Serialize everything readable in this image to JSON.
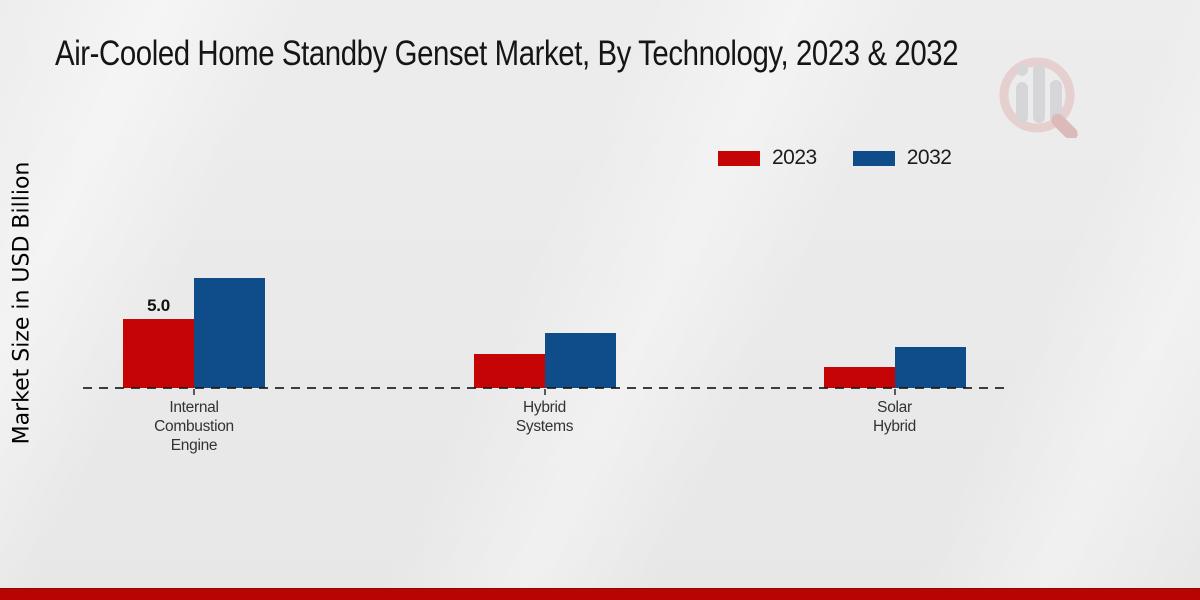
{
  "title": "Air-Cooled Home Standby Genset Market, By Technology, 2023 & 2032",
  "y_axis_label": "Market Size in USD Billion",
  "legend": [
    {
      "label": "2023",
      "color": "#c50505"
    },
    {
      "label": "2032",
      "color": "#0f4c8a"
    }
  ],
  "colors": {
    "series_2023_red": "#c50505",
    "series_2032_blue": "#0f4c8a",
    "footer_band_red": "#b90404",
    "background_gray": "#e9e9e9"
  },
  "watermark": {
    "icon": "bar-chart-magnifier-logo"
  },
  "chart_data": {
    "type": "bar",
    "title": "Air-Cooled Home Standby Genset Market, By Technology, 2023 & 2032",
    "xlabel": "",
    "ylabel": "Market Size in USD Billion",
    "categories": [
      "Internal Combustion Engine",
      "Hybrid Systems",
      "Solar Hybrid"
    ],
    "category_lines": [
      [
        "Internal",
        "Combustion",
        "Engine"
      ],
      [
        "Hybrid",
        "Systems"
      ],
      [
        "Solar",
        "Hybrid"
      ]
    ],
    "series": [
      {
        "name": "2023",
        "color": "#c50505",
        "values": [
          5.0,
          2.5,
          1.5
        ],
        "value_labels": [
          "5.0",
          "",
          ""
        ]
      },
      {
        "name": "2032",
        "color": "#0f4c8a",
        "values": [
          8.0,
          4.0,
          3.0
        ],
        "value_labels": [
          "",
          "",
          ""
        ]
      }
    ],
    "ylim": [
      0,
      9
    ],
    "y_ticks": "none",
    "grid": "dashed zero line only",
    "legend_position": "top-right"
  }
}
